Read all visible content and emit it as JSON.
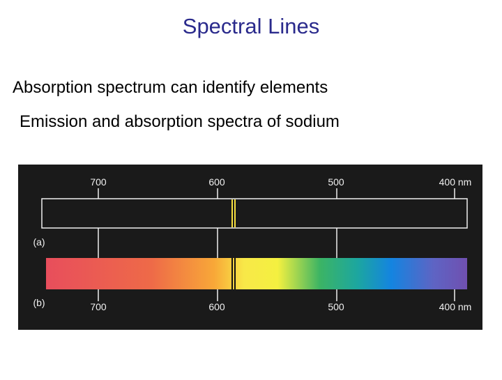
{
  "slide": {
    "title": "Spectral Lines",
    "bullets": [
      "Absorption spectrum can identify elements",
      "Emission and absorption spectra of sodium"
    ]
  },
  "figure": {
    "top_labels": [
      "700",
      "600",
      "500",
      "400 nm"
    ],
    "bottom_labels": [
      "700",
      "600",
      "500",
      "400 nm"
    ],
    "panel_labels": [
      "(a)",
      "(b)"
    ]
  }
}
